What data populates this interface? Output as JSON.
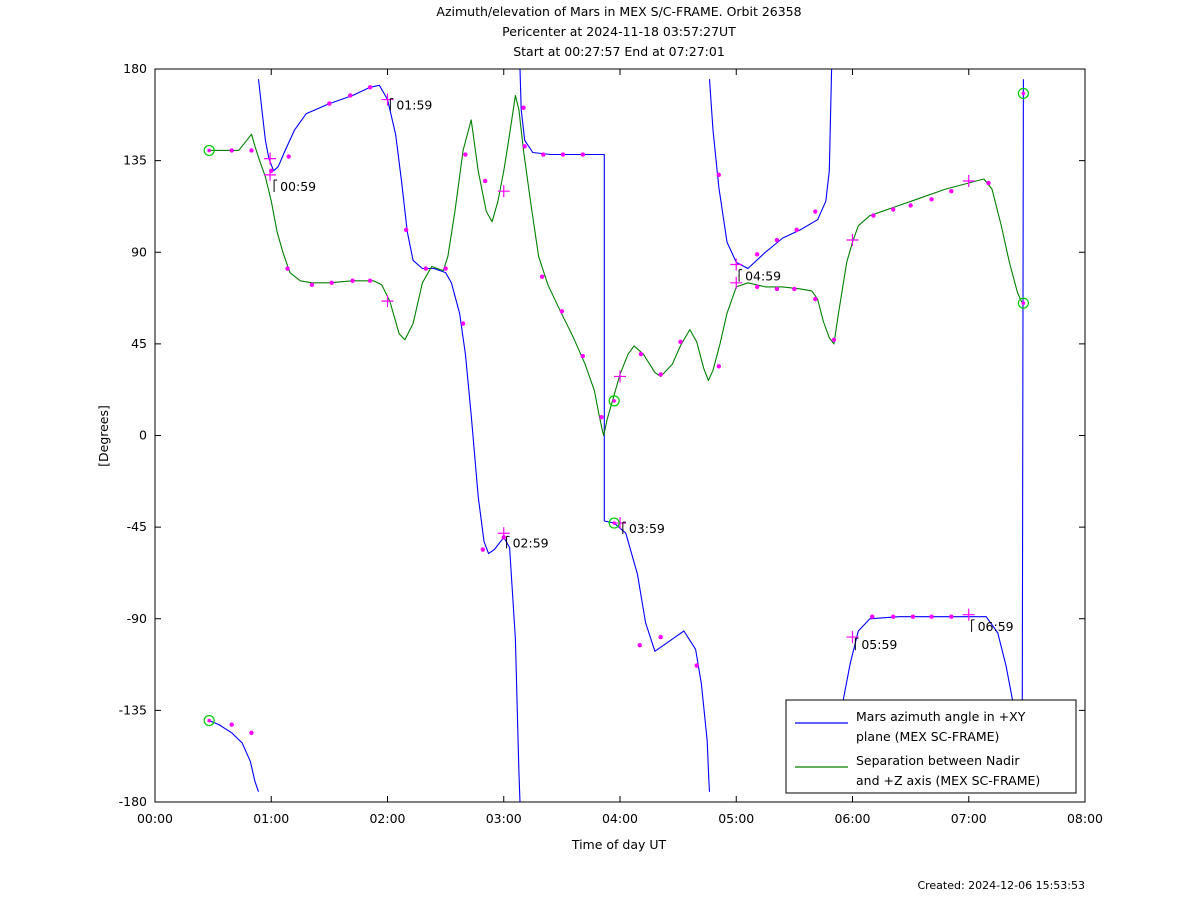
{
  "chart_data": {
    "type": "line",
    "title_lines": [
      "Azimuth/elevation of Mars in MEX S/C-FRAME.  Orbit 26358",
      "Pericenter at 2024-11-18 03:57:27UT",
      "Start at 00:27:57 End at 07:27:01"
    ],
    "xlabel": "Time of day UT",
    "ylabel": "[Degrees]",
    "xlim": [
      0,
      8
    ],
    "ylim": [
      -180,
      180
    ],
    "x_ticks": [
      {
        "v": 0,
        "label": "00:00"
      },
      {
        "v": 1,
        "label": "01:00"
      },
      {
        "v": 2,
        "label": "02:00"
      },
      {
        "v": 3,
        "label": "03:00"
      },
      {
        "v": 4,
        "label": "04:00"
      },
      {
        "v": 5,
        "label": "05:00"
      },
      {
        "v": 6,
        "label": "06:00"
      },
      {
        "v": 7,
        "label": "07:00"
      },
      {
        "v": 8,
        "label": "08:00"
      }
    ],
    "y_ticks": [
      {
        "v": 180,
        "label": "180"
      },
      {
        "v": 135,
        "label": "135"
      },
      {
        "v": 90,
        "label": "90"
      },
      {
        "v": 45,
        "label": "45"
      },
      {
        "v": 0,
        "label": "0"
      },
      {
        "v": -45,
        "label": "-45"
      },
      {
        "v": -90,
        "label": "-90"
      },
      {
        "v": -135,
        "label": "-135"
      },
      {
        "v": -180,
        "label": "-180"
      }
    ],
    "series": [
      {
        "name": "Mars azimuth angle in +XY plane (MEX SC-FRAME)",
        "color": "#0000ff",
        "segments": [
          [
            [
              0.466,
              -140
            ],
            [
              0.55,
              -142
            ],
            [
              0.66,
              -146
            ],
            [
              0.75,
              -151
            ],
            [
              0.82,
              -160
            ],
            [
              0.86,
              -170
            ],
            [
              0.89,
              -175
            ]
          ],
          [
            [
              0.89,
              175
            ],
            [
              0.92,
              160
            ],
            [
              0.95,
              145
            ],
            [
              0.98,
              136
            ],
            [
              1.02,
              130
            ],
            [
              1.06,
              132
            ],
            [
              1.12,
              140
            ],
            [
              1.2,
              150
            ],
            [
              1.3,
              158
            ],
            [
              1.5,
              163
            ],
            [
              1.7,
              167
            ],
            [
              1.85,
              171
            ],
            [
              1.93,
              172
            ],
            [
              2.0,
              165
            ],
            [
              2.07,
              148
            ],
            [
              2.12,
              125
            ],
            [
              2.17,
              100
            ],
            [
              2.22,
              86
            ],
            [
              2.3,
              82
            ],
            [
              2.4,
              82
            ],
            [
              2.5,
              80
            ],
            [
              2.55,
              75
            ],
            [
              2.62,
              60
            ],
            [
              2.67,
              40
            ],
            [
              2.72,
              10
            ],
            [
              2.78,
              -30
            ],
            [
              2.83,
              -52
            ],
            [
              2.87,
              -58
            ],
            [
              2.92,
              -56
            ],
            [
              3.0,
              -50
            ],
            [
              3.05,
              -55
            ],
            [
              3.1,
              -100
            ],
            [
              3.13,
              -165
            ],
            [
              3.14,
              -180
            ]
          ],
          [
            [
              3.14,
              180
            ],
            [
              3.15,
              160
            ],
            [
              3.18,
              145
            ],
            [
              3.25,
              139
            ],
            [
              3.4,
              138
            ],
            [
              3.6,
              138
            ],
            [
              3.72,
              138
            ],
            [
              3.865,
              138
            ],
            [
              3.865,
              -42
            ],
            [
              3.95,
              -43
            ],
            [
              4.05,
              -48
            ],
            [
              4.15,
              -68
            ],
            [
              4.22,
              -92
            ],
            [
              4.3,
              -106
            ],
            [
              4.4,
              -102
            ],
            [
              4.55,
              -96
            ],
            [
              4.65,
              -105
            ],
            [
              4.7,
              -122
            ],
            [
              4.75,
              -150
            ],
            [
              4.765,
              -170
            ],
            [
              4.77,
              -175
            ]
          ],
          [
            [
              4.77,
              175
            ],
            [
              4.8,
              150
            ],
            [
              4.85,
              122
            ],
            [
              4.92,
              95
            ],
            [
              5.0,
              85
            ],
            [
              5.1,
              82
            ],
            [
              5.25,
              90
            ],
            [
              5.4,
              97
            ],
            [
              5.55,
              101
            ],
            [
              5.7,
              106
            ],
            [
              5.77,
              115
            ],
            [
              5.8,
              130
            ],
            [
              5.82,
              180
            ]
          ],
          [
            [
              5.83,
              -175
            ],
            [
              5.86,
              -160
            ],
            [
              5.92,
              -130
            ],
            [
              5.98,
              -112
            ],
            [
              6.05,
              -96
            ],
            [
              6.15,
              -90
            ],
            [
              6.4,
              -89
            ],
            [
              6.7,
              -89
            ],
            [
              7.0,
              -89
            ],
            [
              7.15,
              -89
            ],
            [
              7.25,
              -97
            ],
            [
              7.32,
              -113
            ],
            [
              7.37,
              -128
            ],
            [
              7.42,
              -144
            ],
            [
              7.45,
              -170
            ],
            [
              7.46,
              -155
            ],
            [
              7.47,
              175
            ]
          ]
        ]
      },
      {
        "name": "Separation between Nadir and +Z axis (MEX SC-FRAME)",
        "color": "#008000",
        "segments": [
          [
            [
              0.466,
              140
            ],
            [
              0.55,
              140
            ],
            [
              0.66,
              140
            ],
            [
              0.72,
              140
            ],
            [
              0.79,
              145
            ],
            [
              0.83,
              148
            ],
            [
              0.86,
              142
            ],
            [
              0.9,
              135
            ],
            [
              0.95,
              127
            ],
            [
              1.0,
              115
            ],
            [
              1.05,
              100
            ],
            [
              1.1,
              90
            ],
            [
              1.16,
              80
            ],
            [
              1.25,
              76
            ],
            [
              1.35,
              75
            ],
            [
              1.5,
              75
            ],
            [
              1.7,
              76
            ],
            [
              1.88,
              76
            ],
            [
              1.95,
              74
            ],
            [
              2.02,
              66
            ],
            [
              2.1,
              50
            ],
            [
              2.15,
              47
            ],
            [
              2.22,
              55
            ],
            [
              2.3,
              75
            ],
            [
              2.38,
              83
            ],
            [
              2.48,
              81
            ],
            [
              2.52,
              88
            ],
            [
              2.58,
              110
            ],
            [
              2.65,
              140
            ],
            [
              2.72,
              155
            ],
            [
              2.78,
              130
            ],
            [
              2.85,
              110
            ],
            [
              2.9,
              105
            ],
            [
              2.95,
              115
            ],
            [
              3.0,
              130
            ],
            [
              3.05,
              148
            ],
            [
              3.1,
              167
            ],
            [
              3.13,
              160
            ],
            [
              3.17,
              140
            ],
            [
              3.23,
              115
            ],
            [
              3.3,
              88
            ],
            [
              3.38,
              74
            ],
            [
              3.48,
              62
            ],
            [
              3.6,
              48
            ],
            [
              3.7,
              35
            ],
            [
              3.78,
              22
            ],
            [
              3.82,
              10
            ],
            [
              3.85,
              2
            ],
            [
              3.86,
              0
            ],
            [
              3.89,
              8
            ],
            [
              3.95,
              20
            ],
            [
              4.0,
              30
            ],
            [
              4.07,
              40
            ],
            [
              4.12,
              44
            ],
            [
              4.2,
              40
            ],
            [
              4.3,
              31
            ],
            [
              4.35,
              29
            ],
            [
              4.45,
              35
            ],
            [
              4.52,
              44
            ],
            [
              4.6,
              52
            ],
            [
              4.66,
              46
            ],
            [
              4.72,
              33
            ],
            [
              4.76,
              27
            ],
            [
              4.8,
              32
            ],
            [
              4.86,
              45
            ],
            [
              4.92,
              60
            ],
            [
              5.0,
              73
            ],
            [
              5.1,
              75
            ],
            [
              5.25,
              73
            ],
            [
              5.4,
              73
            ],
            [
              5.55,
              72
            ],
            [
              5.65,
              71
            ],
            [
              5.7,
              67
            ],
            [
              5.75,
              56
            ],
            [
              5.8,
              48
            ],
            [
              5.84,
              45
            ],
            [
              5.88,
              60
            ],
            [
              5.95,
              85
            ],
            [
              6.0,
              95
            ],
            [
              6.05,
              103
            ],
            [
              6.15,
              108
            ],
            [
              6.35,
              112
            ],
            [
              6.6,
              117
            ],
            [
              6.8,
              121
            ],
            [
              7.0,
              124
            ],
            [
              7.13,
              126
            ],
            [
              7.2,
              121
            ],
            [
              7.28,
              103
            ],
            [
              7.35,
              85
            ],
            [
              7.42,
              70
            ],
            [
              7.46,
              65
            ]
          ]
        ]
      }
    ],
    "marker_points": [
      [
        0.66,
        140
      ],
      [
        0.83,
        140
      ],
      [
        1.0,
        130
      ],
      [
        1.15,
        137
      ],
      [
        1.14,
        82
      ],
      [
        1.35,
        74
      ],
      [
        1.52,
        75
      ],
      [
        1.7,
        76
      ],
      [
        1.85,
        76
      ],
      [
        1.5,
        163
      ],
      [
        1.68,
        167
      ],
      [
        1.85,
        171
      ],
      [
        2.16,
        101
      ],
      [
        2.33,
        82
      ],
      [
        2.5,
        82
      ],
      [
        2.65,
        55
      ],
      [
        2.82,
        -56
      ],
      [
        2.67,
        138
      ],
      [
        2.84,
        125
      ],
      [
        3.0,
        -50
      ],
      [
        3.18,
        142
      ],
      [
        3.33,
        78
      ],
      [
        3.5,
        61
      ],
      [
        3.68,
        39
      ],
      [
        3.84,
        9
      ],
      [
        3.34,
        138
      ],
      [
        3.51,
        138
      ],
      [
        3.68,
        138
      ],
      [
        3.17,
        161
      ],
      [
        4.18,
        40
      ],
      [
        4.35,
        30
      ],
      [
        4.52,
        46
      ],
      [
        4.17,
        -103
      ],
      [
        4.35,
        -99
      ],
      [
        4.66,
        -113
      ],
      [
        4.85,
        128
      ],
      [
        4.85,
        34
      ],
      [
        5.18,
        73
      ],
      [
        5.35,
        72
      ],
      [
        5.5,
        72
      ],
      [
        5.68,
        67
      ],
      [
        5.18,
        89
      ],
      [
        5.35,
        96
      ],
      [
        5.52,
        101
      ],
      [
        5.68,
        110
      ],
      [
        5.84,
        47
      ],
      [
        6.18,
        108
      ],
      [
        6.35,
        111
      ],
      [
        6.5,
        113
      ],
      [
        6.68,
        116
      ],
      [
        6.85,
        120
      ],
      [
        7.17,
        124
      ],
      [
        6.17,
        -89
      ],
      [
        6.35,
        -89
      ],
      [
        6.52,
        -89
      ],
      [
        6.68,
        -89
      ],
      [
        6.85,
        -89
      ],
      [
        0.66,
        -142
      ],
      [
        0.83,
        -146
      ]
    ],
    "plus_markers": [
      [
        0.99,
        136
      ],
      [
        0.99,
        128
      ],
      [
        2.0,
        66
      ],
      [
        2.0,
        165
      ],
      [
        3.0,
        120
      ],
      [
        3.0,
        -48
      ],
      [
        4.0,
        -43
      ],
      [
        4.0,
        29
      ],
      [
        5.0,
        84
      ],
      [
        5.0,
        75
      ],
      [
        6.0,
        -99
      ],
      [
        6.0,
        96
      ],
      [
        7.0,
        -88
      ],
      [
        7.0,
        125
      ]
    ],
    "circle_markers": [
      [
        0.466,
        140
      ],
      [
        0.466,
        -140
      ],
      [
        7.47,
        168
      ],
      [
        7.47,
        65
      ],
      [
        3.95,
        -43
      ],
      [
        3.95,
        17
      ]
    ],
    "annotations": [
      {
        "x": 0.99,
        "y": 123,
        "label": "00:59"
      },
      {
        "x": 1.99,
        "y": 163,
        "label": "01:59"
      },
      {
        "x": 2.99,
        "y": -52,
        "label": "02:59"
      },
      {
        "x": 3.99,
        "y": -45,
        "label": "03:59"
      },
      {
        "x": 4.99,
        "y": 79,
        "label": "04:59"
      },
      {
        "x": 5.99,
        "y": -102,
        "label": "05:59"
      },
      {
        "x": 6.99,
        "y": -93,
        "label": "06:59"
      }
    ],
    "legend": {
      "position": "bottom-right",
      "entries": [
        {
          "color": "#0000ff",
          "lines": [
            "Mars azimuth angle in +XY",
            "plane (MEX SC-FRAME)"
          ]
        },
        {
          "color": "#008000",
          "lines": [
            "Separation between Nadir",
            "and +Z axis (MEX SC-FRAME)"
          ]
        }
      ]
    },
    "marker_color": "#ff00ff",
    "circle_color": "#00cc00",
    "grid": false
  },
  "footer": {
    "created": "Created: 2024-12-06 15:53:53"
  }
}
